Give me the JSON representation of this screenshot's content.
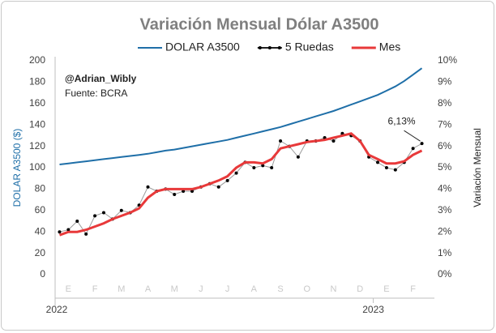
{
  "chart_data": {
    "type": "line",
    "title": "Variación Mensual Dólar A3500",
    "annotations": [
      "@Adrian_Wibly",
      "Fuente: BCRA"
    ],
    "y_label": "DOLAR A3500 ($)",
    "y2_label": "Variación Mensual",
    "categories": [
      null,
      "E",
      null,
      null,
      "F",
      null,
      null,
      "M",
      null,
      null,
      "A",
      null,
      null,
      "M",
      null,
      null,
      "J",
      null,
      null,
      "J",
      null,
      null,
      "A",
      null,
      null,
      "S",
      null,
      null,
      "O",
      null,
      null,
      "N",
      null,
      null,
      "D",
      null,
      null,
      "E",
      null,
      null,
      "F",
      null
    ],
    "x_groups": [
      {
        "label": "2022",
        "start": 0
      },
      {
        "label": "2023",
        "start": 36
      }
    ],
    "ylim": [
      0,
      200
    ],
    "yticks": [
      0,
      20,
      40,
      60,
      80,
      100,
      120,
      140,
      160,
      180,
      200
    ],
    "y2lim": [
      0,
      10
    ],
    "y2ticks": [
      {
        "value": 0,
        "label": "0%"
      },
      {
        "value": 1,
        "label": "1%"
      },
      {
        "value": 2,
        "label": "2%"
      },
      {
        "value": 3,
        "label": "3%"
      },
      {
        "value": 4,
        "label": "4%"
      },
      {
        "value": 5,
        "label": "5%"
      },
      {
        "value": 6,
        "label": "6%"
      },
      {
        "value": 7,
        "label": "7%"
      },
      {
        "value": 8,
        "label": "8%"
      },
      {
        "value": 9,
        "label": "9%"
      },
      {
        "value": 10,
        "label": "10%"
      }
    ],
    "grid": false,
    "legend": "top",
    "series": [
      {
        "name": "DOLAR A3500",
        "color": "#1f6fa8",
        "axis": "y",
        "values": [
          103,
          104,
          105,
          106,
          107,
          108,
          109,
          110,
          111,
          112,
          113,
          114.5,
          116,
          117,
          118.5,
          120,
          121.5,
          123,
          124.5,
          126,
          128,
          130,
          132,
          134,
          136,
          138,
          140.5,
          143,
          145.5,
          148,
          150.5,
          153,
          156,
          159,
          162,
          165,
          168,
          172,
          176,
          181,
          187,
          193
        ]
      },
      {
        "name": "5 Ruedas",
        "color": "#000000",
        "axis": "y2",
        "values": [
          2.0,
          2.1,
          2.5,
          1.9,
          2.75,
          2.9,
          2.6,
          3.0,
          2.9,
          3.25,
          4.1,
          3.9,
          4.0,
          3.75,
          3.9,
          3.9,
          4.1,
          4.25,
          4.1,
          4.4,
          4.75,
          5.25,
          5.0,
          5.1,
          5.0,
          6.25,
          6.0,
          5.5,
          6.25,
          6.25,
          6.4,
          6.25,
          6.6,
          6.5,
          6.25,
          5.5,
          5.25,
          5.0,
          4.9,
          5.25,
          5.9,
          6.13
        ],
        "value_labels": [
          null,
          null,
          null,
          null,
          null,
          null,
          null,
          null,
          null,
          null,
          null,
          null,
          null,
          null,
          null,
          null,
          null,
          null,
          null,
          null,
          null,
          null,
          null,
          null,
          null,
          null,
          null,
          null,
          null,
          null,
          null,
          null,
          null,
          null,
          null,
          null,
          null,
          null,
          null,
          null,
          null,
          "6,13%"
        ]
      },
      {
        "name": "Mes",
        "color": "#e8393a",
        "axis": "y2",
        "values": [
          1.85,
          2.0,
          2.0,
          2.1,
          2.25,
          2.4,
          2.6,
          2.75,
          2.9,
          3.1,
          3.6,
          3.9,
          4.0,
          4.0,
          4.0,
          4.0,
          4.1,
          4.25,
          4.4,
          4.6,
          5.0,
          5.25,
          5.25,
          5.2,
          5.4,
          5.9,
          6.0,
          6.1,
          6.2,
          6.25,
          6.3,
          6.4,
          6.5,
          6.6,
          6.25,
          5.6,
          5.4,
          5.2,
          5.2,
          5.3,
          5.6,
          5.8
        ]
      }
    ]
  }
}
